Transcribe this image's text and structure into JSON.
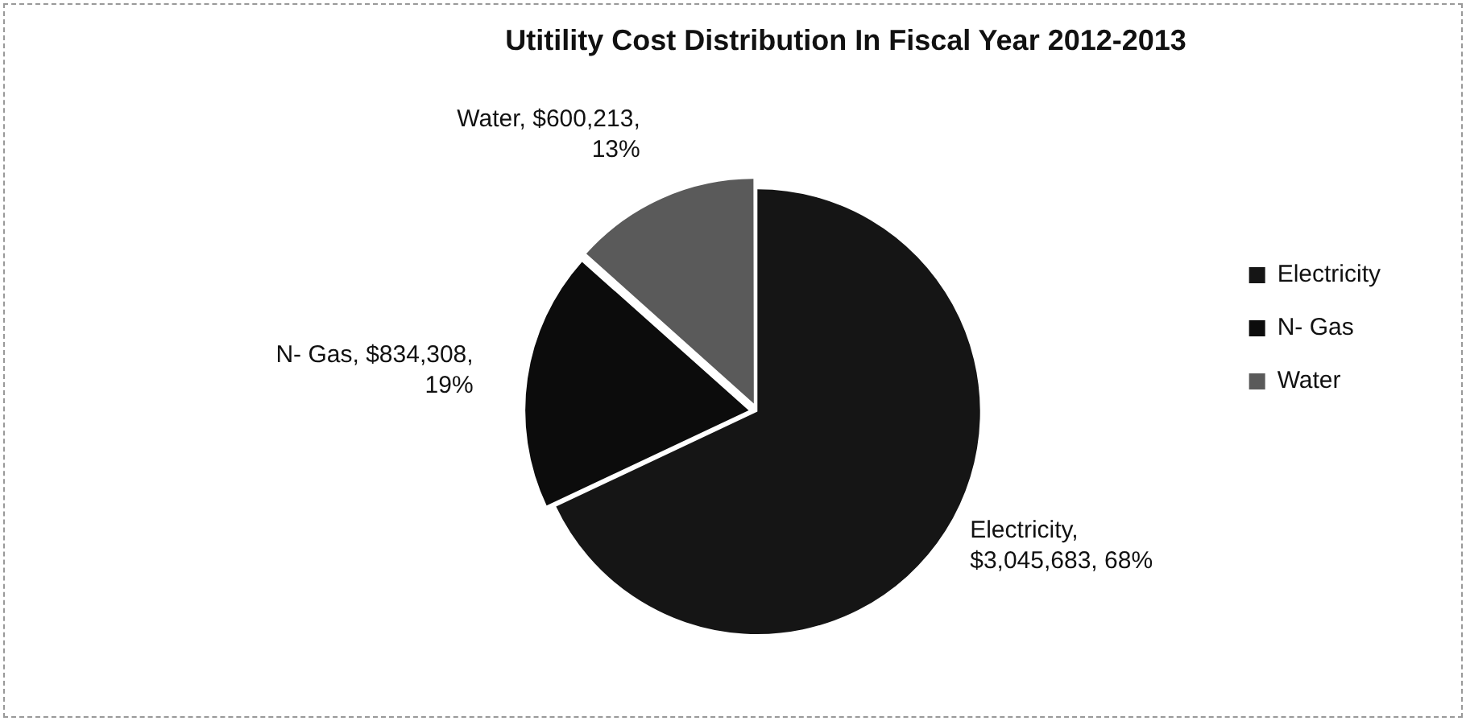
{
  "chart_data": {
    "type": "pie",
    "title": "Utitility Cost Distribution In Fiscal Year 2012-2013",
    "categories": [
      "Electricity",
      "N- Gas",
      "Water"
    ],
    "values": [
      3045683,
      834308,
      600213
    ],
    "colors": [
      "#151515",
      "#0c0c0c",
      "#5a5a5a"
    ],
    "value_labels": [
      "Electricity, $3,045,683, 68%",
      "N- Gas, $834,308, 19%",
      "Water, $600,213, 13%"
    ],
    "legend": "right"
  }
}
